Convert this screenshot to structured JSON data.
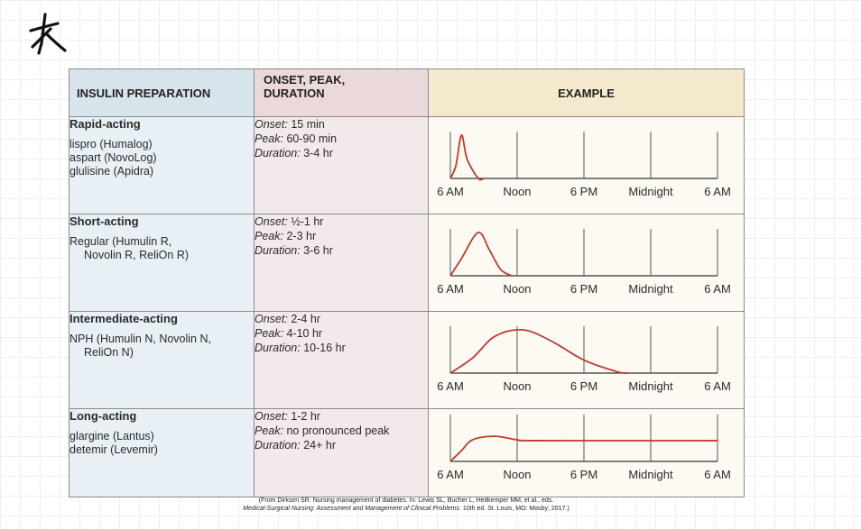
{
  "headers": {
    "preparation": "INSULIN PREPARATION",
    "timing_line1": "ONSET, PEAK,",
    "timing_line2": "DURATION",
    "example": "EXAMPLE"
  },
  "time_labels": [
    "Onset:",
    "Peak:",
    "Duration:"
  ],
  "axis_labels": [
    "6 AM",
    "Noon",
    "6 PM",
    "Midnight",
    "6 AM"
  ],
  "line_color": "#c0392b",
  "rows": [
    {
      "category": "Rapid-acting",
      "examples": [
        "lispro (Humalog)",
        "aspart (NovoLog)",
        "glulisine (Apidra)"
      ],
      "onset": "15 min",
      "peak": "60-90 min",
      "duration": "3-4 hr",
      "curve": [
        [
          0,
          0
        ],
        [
          0.5,
          0.3
        ],
        [
          1,
          1
        ],
        [
          1.5,
          0.45
        ],
        [
          2.5,
          0
        ],
        [
          3,
          0
        ]
      ]
    },
    {
      "category": "Short-acting",
      "examples": [
        "Regular (Humulin R,",
        "Novolin R, ReliOn R)"
      ],
      "onset": "½-1 hr",
      "peak": "2-3 hr",
      "duration": "3-6 hr",
      "curve": [
        [
          0,
          0
        ],
        [
          1,
          0.4
        ],
        [
          2.5,
          1
        ],
        [
          3.5,
          0.6
        ],
        [
          4.5,
          0.15
        ],
        [
          5.5,
          0
        ]
      ]
    },
    {
      "category": "Intermediate-acting",
      "examples": [
        "NPH (Humulin N, Novolin N,",
        "ReliOn N)"
      ],
      "onset": "2-4 hr",
      "peak": "4-10 hr",
      "duration": "10-16 hr",
      "curve": [
        [
          0,
          0
        ],
        [
          2,
          0.35
        ],
        [
          4,
          0.85
        ],
        [
          6.5,
          1
        ],
        [
          9,
          0.75
        ],
        [
          12,
          0.3
        ],
        [
          15,
          0.03
        ],
        [
          16,
          0
        ]
      ]
    },
    {
      "category": "Long-acting",
      "examples": [
        "glargine (Lantus)",
        "detemir (Levemir)"
      ],
      "onset": "1-2 hr",
      "peak": "no pronounced peak",
      "duration": "24+ hr",
      "curve": [
        [
          0,
          0
        ],
        [
          1,
          0.25
        ],
        [
          2,
          0.5
        ],
        [
          4,
          0.58
        ],
        [
          6,
          0.5
        ],
        [
          8,
          0.48
        ],
        [
          24,
          0.48
        ]
      ]
    }
  ],
  "footer_line1": "(From Dirksen SR. Nursing management of diabetes. In: Lewis SL, Bucher L, Heitkemper MM, et al., eds.",
  "footer_line2_italic": "Medical-Surgical Nursing: Assessment and Management of Clinical Problems.",
  "footer_line2_rest": " 10th ed. St. Louis, MO: Mosby; 2017.)"
}
